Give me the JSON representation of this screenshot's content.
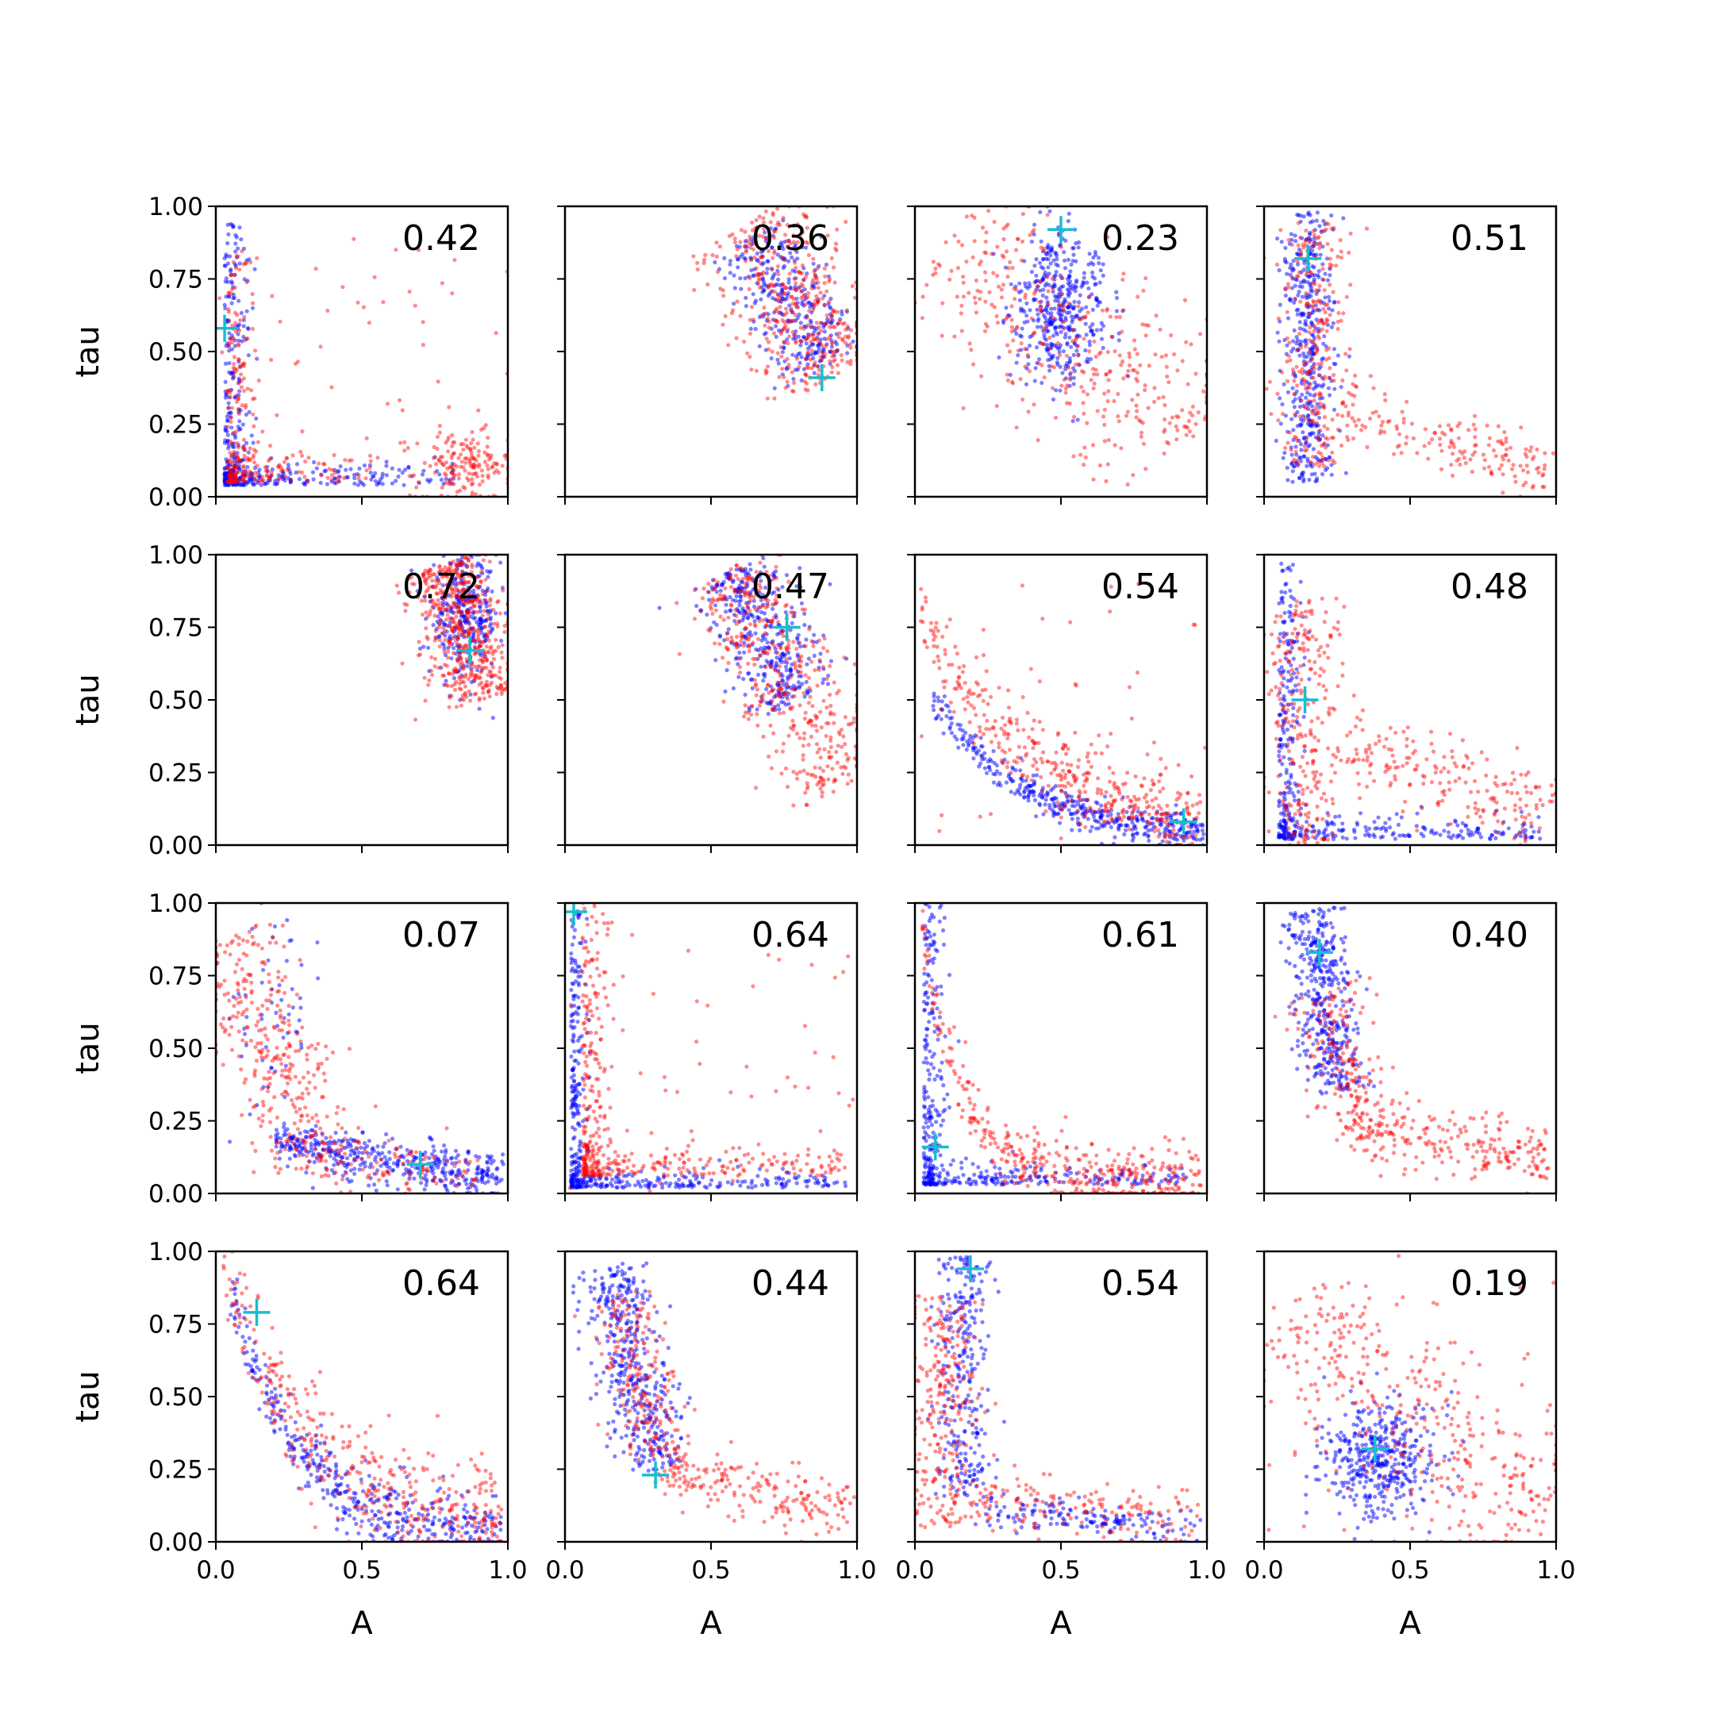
{
  "figure": {
    "xlabel": "A",
    "ylabel": "tau",
    "colors": {
      "series_1": "#0000ff",
      "series_2": "#ff0000",
      "marker": "#17becf"
    }
  },
  "chart_data": [
    {
      "type": "scatter",
      "annotation": "0.42",
      "xlim": [
        0,
        1
      ],
      "ylim": [
        0,
        1
      ],
      "xticks": [
        "0.0",
        "0.5",
        "1.0"
      ],
      "yticks": [
        "0.00",
        "0.25",
        "0.50",
        "0.75",
        "1.00"
      ],
      "marker": [
        0.03,
        0.58
      ],
      "series": [
        {
          "color": "blue",
          "clusters": [
            {
              "shape": "L",
              "corner": [
                0.03,
                0.04
              ],
              "arm_x": 0.8,
              "arm_y": 0.9,
              "thick": 0.04,
              "n": 420
            }
          ]
        },
        {
          "color": "red",
          "clusters": [
            {
              "shape": "L",
              "corner": [
                0.04,
                0.05
              ],
              "arm_x": 0.5,
              "arm_y": 0.8,
              "thick": 0.05,
              "n": 250
            },
            {
              "shape": "blob",
              "cx": 0.85,
              "cy": 0.1,
              "sx": 0.08,
              "sy": 0.06,
              "n": 160
            },
            {
              "shape": "noise",
              "n": 60
            }
          ]
        }
      ]
    },
    {
      "type": "scatter",
      "annotation": "0.36",
      "xlim": [
        0,
        1
      ],
      "ylim": [
        0,
        1
      ],
      "xticks": [
        "0.0",
        "0.5",
        "1.0"
      ],
      "yticks": [
        "0.00",
        "0.25",
        "0.50",
        "0.75",
        "1.00"
      ],
      "marker": [
        0.88,
        0.41
      ],
      "series": [
        {
          "color": "blue",
          "clusters": [
            {
              "shape": "band",
              "x0": 0.65,
              "y0": 0.9,
              "x1": 0.9,
              "y1": 0.45,
              "w": 0.08,
              "n": 330
            }
          ]
        },
        {
          "color": "red",
          "clusters": [
            {
              "shape": "band",
              "x0": 0.62,
              "y0": 0.95,
              "x1": 0.93,
              "y1": 0.42,
              "w": 0.11,
              "n": 420
            }
          ]
        }
      ]
    },
    {
      "type": "scatter",
      "annotation": "0.23",
      "xlim": [
        0,
        1
      ],
      "ylim": [
        0,
        1
      ],
      "xticks": [
        "0.0",
        "0.5",
        "1.0"
      ],
      "yticks": [
        "0.00",
        "0.25",
        "0.50",
        "0.75",
        "1.00"
      ],
      "marker": [
        0.5,
        0.92
      ],
      "series": [
        {
          "color": "blue",
          "clusters": [
            {
              "shape": "blob",
              "cx": 0.5,
              "cy": 0.65,
              "sx": 0.08,
              "sy": 0.13,
              "n": 420
            }
          ]
        },
        {
          "color": "red",
          "clusters": [
            {
              "shape": "band",
              "x0": 0.1,
              "y0": 0.88,
              "x1": 0.95,
              "y1": 0.2,
              "w": 0.15,
              "n": 380
            }
          ]
        }
      ]
    },
    {
      "type": "scatter",
      "annotation": "0.51",
      "xlim": [
        0,
        1
      ],
      "ylim": [
        0,
        1
      ],
      "xticks": [
        "0.0",
        "0.5",
        "1.0"
      ],
      "yticks": [
        "0.00",
        "0.25",
        "0.50",
        "0.75",
        "1.00"
      ],
      "marker": [
        0.15,
        0.82
      ],
      "series": [
        {
          "color": "blue",
          "clusters": [
            {
              "shape": "vband",
              "cx": 0.15,
              "y0": 0.05,
              "y1": 0.98,
              "sx": 0.045,
              "n": 420
            }
          ]
        },
        {
          "color": "red",
          "clusters": [
            {
              "shape": "vband",
              "cx": 0.17,
              "y0": 0.1,
              "y1": 0.95,
              "sx": 0.06,
              "n": 260
            },
            {
              "shape": "band",
              "x0": 0.25,
              "y0": 0.3,
              "x1": 0.98,
              "y1": 0.08,
              "w": 0.06,
              "n": 170
            }
          ]
        }
      ]
    },
    {
      "type": "scatter",
      "annotation": "0.72",
      "xlim": [
        0,
        1
      ],
      "ylim": [
        0,
        1
      ],
      "xticks": [
        "0.0",
        "0.5",
        "1.0"
      ],
      "yticks": [
        "0.00",
        "0.25",
        "0.50",
        "0.75",
        "1.00"
      ],
      "marker": [
        0.87,
        0.67
      ],
      "series": [
        {
          "color": "blue",
          "clusters": [
            {
              "shape": "blob",
              "cx": 0.85,
              "cy": 0.78,
              "sx": 0.06,
              "sy": 0.1,
              "n": 300
            }
          ]
        },
        {
          "color": "red",
          "clusters": [
            {
              "shape": "band",
              "x0": 0.78,
              "y0": 0.97,
              "x1": 0.92,
              "y1": 0.5,
              "w": 0.07,
              "n": 520
            }
          ]
        }
      ]
    },
    {
      "type": "scatter",
      "annotation": "0.47",
      "xlim": [
        0,
        1
      ],
      "ylim": [
        0,
        1
      ],
      "xticks": [
        "0.0",
        "0.5",
        "1.0"
      ],
      "yticks": [
        "0.00",
        "0.25",
        "0.50",
        "0.75",
        "1.00"
      ],
      "marker": [
        0.76,
        0.75
      ],
      "series": [
        {
          "color": "blue",
          "clusters": [
            {
              "shape": "band",
              "x0": 0.58,
              "y0": 0.95,
              "x1": 0.8,
              "y1": 0.5,
              "w": 0.08,
              "n": 380
            }
          ]
        },
        {
          "color": "red",
          "clusters": [
            {
              "shape": "band",
              "x0": 0.55,
              "y0": 0.95,
              "x1": 0.95,
              "y1": 0.2,
              "w": 0.09,
              "n": 440
            }
          ]
        }
      ]
    },
    {
      "type": "scatter",
      "annotation": "0.54",
      "xlim": [
        0,
        1
      ],
      "ylim": [
        0,
        1
      ],
      "xticks": [
        "0.0",
        "0.5",
        "1.0"
      ],
      "yticks": [
        "0.00",
        "0.25",
        "0.50",
        "0.75",
        "1.00"
      ],
      "marker": [
        0.92,
        0.08
      ],
      "series": [
        {
          "color": "blue",
          "clusters": [
            {
              "shape": "curve",
              "a": 0.02,
              "b": 0.6,
              "k": 3.2,
              "x0": 0.05,
              "x1": 0.99,
              "sy": 0.03,
              "n": 420
            }
          ]
        },
        {
          "color": "red",
          "clusters": [
            {
              "shape": "curve",
              "a": 0.03,
              "b": 0.8,
              "k": 2.6,
              "x0": 0.02,
              "x1": 0.98,
              "sy": 0.07,
              "n": 380
            },
            {
              "shape": "noise",
              "n": 40
            }
          ]
        }
      ]
    },
    {
      "type": "scatter",
      "annotation": "0.48",
      "xlim": [
        0,
        1
      ],
      "ylim": [
        0,
        1
      ],
      "xticks": [
        "0.0",
        "0.5",
        "1.0"
      ],
      "yticks": [
        "0.00",
        "0.25",
        "0.50",
        "0.75",
        "1.00"
      ],
      "marker": [
        0.14,
        0.5
      ],
      "series": [
        {
          "color": "blue",
          "clusters": [
            {
              "shape": "L",
              "corner": [
                0.05,
                0.02
              ],
              "arm_x": 0.9,
              "arm_y": 0.95,
              "thick": 0.04,
              "n": 400
            }
          ]
        },
        {
          "color": "red",
          "clusters": [
            {
              "shape": "vband",
              "cx": 0.13,
              "y0": 0.0,
              "y1": 0.85,
              "sx": 0.06,
              "n": 250
            },
            {
              "shape": "band",
              "x0": 0.25,
              "y0": 0.35,
              "x1": 0.98,
              "y1": 0.1,
              "w": 0.07,
              "n": 200
            }
          ]
        }
      ]
    },
    {
      "type": "scatter",
      "annotation": "0.07",
      "xlim": [
        0,
        1
      ],
      "ylim": [
        0,
        1
      ],
      "xticks": [
        "0.0",
        "0.5",
        "1.0"
      ],
      "yticks": [
        "0.00",
        "0.25",
        "0.50",
        "0.75",
        "1.00"
      ],
      "marker": [
        0.7,
        0.1
      ],
      "series": [
        {
          "color": "blue",
          "clusters": [
            {
              "shape": "band",
              "x0": 0.2,
              "y0": 0.18,
              "x1": 0.98,
              "y1": 0.05,
              "w": 0.04,
              "n": 420
            },
            {
              "shape": "blob",
              "cx": 0.2,
              "cy": 0.6,
              "sx": 0.08,
              "sy": 0.2,
              "n": 60
            }
          ]
        },
        {
          "color": "red",
          "clusters": [
            {
              "shape": "band",
              "x0": 0.05,
              "y0": 0.9,
              "x1": 0.35,
              "y1": 0.1,
              "w": 0.09,
              "n": 330
            },
            {
              "shape": "band",
              "x0": 0.3,
              "y0": 0.12,
              "x1": 0.9,
              "y1": 0.06,
              "w": 0.05,
              "n": 100
            }
          ]
        }
      ]
    },
    {
      "type": "scatter",
      "annotation": "0.64",
      "xlim": [
        0,
        1
      ],
      "ylim": [
        0,
        1
      ],
      "xticks": [
        "0.0",
        "0.5",
        "1.0"
      ],
      "yticks": [
        "0.00",
        "0.25",
        "0.50",
        "0.75",
        "1.00"
      ],
      "marker": [
        0.03,
        0.97
      ],
      "series": [
        {
          "color": "blue",
          "clusters": [
            {
              "shape": "L",
              "corner": [
                0.02,
                0.02
              ],
              "arm_x": 0.95,
              "arm_y": 0.97,
              "thick": 0.025,
              "n": 420
            }
          ]
        },
        {
          "color": "red",
          "clusters": [
            {
              "shape": "L",
              "corner": [
                0.06,
                0.06
              ],
              "arm_x": 0.9,
              "arm_y": 0.95,
              "thick": 0.05,
              "n": 380
            },
            {
              "shape": "noise",
              "n": 50
            }
          ]
        }
      ]
    },
    {
      "type": "scatter",
      "annotation": "0.61",
      "xlim": [
        0,
        1
      ],
      "ylim": [
        0,
        1
      ],
      "xticks": [
        "0.0",
        "0.5",
        "1.0"
      ],
      "yticks": [
        "0.00",
        "0.25",
        "0.50",
        "0.75",
        "1.00"
      ],
      "marker": [
        0.07,
        0.16
      ],
      "series": [
        {
          "color": "blue",
          "clusters": [
            {
              "shape": "L",
              "corner": [
                0.03,
                0.03
              ],
              "arm_x": 0.9,
              "arm_y": 0.97,
              "thick": 0.035,
              "n": 420
            }
          ]
        },
        {
          "color": "red",
          "clusters": [
            {
              "shape": "curve",
              "a": 0.04,
              "b": 1.0,
              "k": 7.0,
              "x0": 0.02,
              "x1": 0.98,
              "sy": 0.06,
              "n": 400
            }
          ]
        }
      ]
    },
    {
      "type": "scatter",
      "annotation": "0.40",
      "xlim": [
        0,
        1
      ],
      "ylim": [
        0,
        1
      ],
      "xticks": [
        "0.0",
        "0.5",
        "1.0"
      ],
      "yticks": [
        "0.00",
        "0.25",
        "0.50",
        "0.75",
        "1.00"
      ],
      "marker": [
        0.19,
        0.83
      ],
      "series": [
        {
          "color": "blue",
          "clusters": [
            {
              "shape": "band",
              "x0": 0.16,
              "y0": 0.98,
              "x1": 0.25,
              "y1": 0.35,
              "w": 0.05,
              "n": 420
            }
          ]
        },
        {
          "color": "red",
          "clusters": [
            {
              "shape": "band",
              "x0": 0.2,
              "y0": 0.7,
              "x1": 0.35,
              "y1": 0.2,
              "w": 0.07,
              "n": 180
            },
            {
              "shape": "band",
              "x0": 0.3,
              "y0": 0.22,
              "x1": 0.98,
              "y1": 0.12,
              "w": 0.06,
              "n": 230
            }
          ]
        }
      ]
    },
    {
      "type": "scatter",
      "annotation": "0.64",
      "xlim": [
        0,
        1
      ],
      "ylim": [
        0,
        1
      ],
      "xticks": [
        "0.0",
        "0.5",
        "1.0"
      ],
      "yticks": [
        "0.00",
        "0.25",
        "0.50",
        "0.75",
        "1.00"
      ],
      "marker": [
        0.14,
        0.79
      ],
      "series": [
        {
          "color": "blue",
          "clusters": [
            {
              "shape": "curve",
              "a": 0.03,
              "b": 1.05,
              "k": 4.5,
              "x0": 0.05,
              "x1": 0.98,
              "sy": 0.06,
              "n": 420
            }
          ]
        },
        {
          "color": "red",
          "clusters": [
            {
              "shape": "curve",
              "a": 0.05,
              "b": 1.0,
              "k": 3.5,
              "x0": 0.02,
              "x1": 0.98,
              "sy": 0.1,
              "n": 380
            }
          ]
        }
      ]
    },
    {
      "type": "scatter",
      "annotation": "0.44",
      "xlim": [
        0,
        1
      ],
      "ylim": [
        0,
        1
      ],
      "xticks": [
        "0.0",
        "0.5",
        "1.0"
      ],
      "yticks": [
        "0.00",
        "0.25",
        "0.50",
        "0.75",
        "1.00"
      ],
      "marker": [
        0.31,
        0.23
      ],
      "series": [
        {
          "color": "blue",
          "clusters": [
            {
              "shape": "band",
              "x0": 0.15,
              "y0": 0.95,
              "x1": 0.32,
              "y1": 0.25,
              "w": 0.06,
              "n": 420
            }
          ]
        },
        {
          "color": "red",
          "clusters": [
            {
              "shape": "band",
              "x0": 0.18,
              "y0": 0.85,
              "x1": 0.32,
              "y1": 0.3,
              "w": 0.06,
              "n": 200
            },
            {
              "shape": "band",
              "x0": 0.32,
              "y0": 0.25,
              "x1": 0.98,
              "y1": 0.1,
              "w": 0.05,
              "n": 200
            }
          ]
        }
      ]
    },
    {
      "type": "scatter",
      "annotation": "0.54",
      "xlim": [
        0,
        1
      ],
      "ylim": [
        0,
        1
      ],
      "xticks": [
        "0.0",
        "0.5",
        "1.0"
      ],
      "yticks": [
        "0.00",
        "0.25",
        "0.50",
        "0.75",
        "1.00"
      ],
      "marker": [
        0.19,
        0.94
      ],
      "series": [
        {
          "color": "blue",
          "clusters": [
            {
              "shape": "vband",
              "cx": 0.17,
              "y0": 0.15,
              "y1": 0.98,
              "sx": 0.045,
              "n": 280
            },
            {
              "shape": "band",
              "x0": 0.2,
              "y0": 0.12,
              "x1": 0.98,
              "y1": 0.03,
              "w": 0.03,
              "n": 160
            }
          ]
        },
        {
          "color": "red",
          "clusters": [
            {
              "shape": "vband",
              "cx": 0.1,
              "y0": 0.05,
              "y1": 0.85,
              "sx": 0.06,
              "n": 260
            },
            {
              "shape": "band",
              "x0": 0.2,
              "y0": 0.15,
              "x1": 0.98,
              "y1": 0.07,
              "w": 0.05,
              "n": 150
            }
          ]
        }
      ]
    },
    {
      "type": "scatter",
      "annotation": "0.19",
      "xlim": [
        0,
        1
      ],
      "ylim": [
        0,
        1
      ],
      "xticks": [
        "0.0",
        "0.5",
        "1.0"
      ],
      "yticks": [
        "0.00",
        "0.25",
        "0.50",
        "0.75",
        "1.00"
      ],
      "marker": [
        0.38,
        0.32
      ],
      "series": [
        {
          "color": "blue",
          "clusters": [
            {
              "shape": "blob",
              "cx": 0.4,
              "cy": 0.28,
              "sx": 0.1,
              "sy": 0.1,
              "n": 420
            }
          ]
        },
        {
          "color": "red",
          "clusters": [
            {
              "shape": "band",
              "x0": 0.05,
              "y0": 0.75,
              "x1": 0.98,
              "y1": 0.1,
              "w": 0.14,
              "n": 330
            },
            {
              "shape": "noise",
              "n": 60
            }
          ]
        }
      ]
    }
  ]
}
